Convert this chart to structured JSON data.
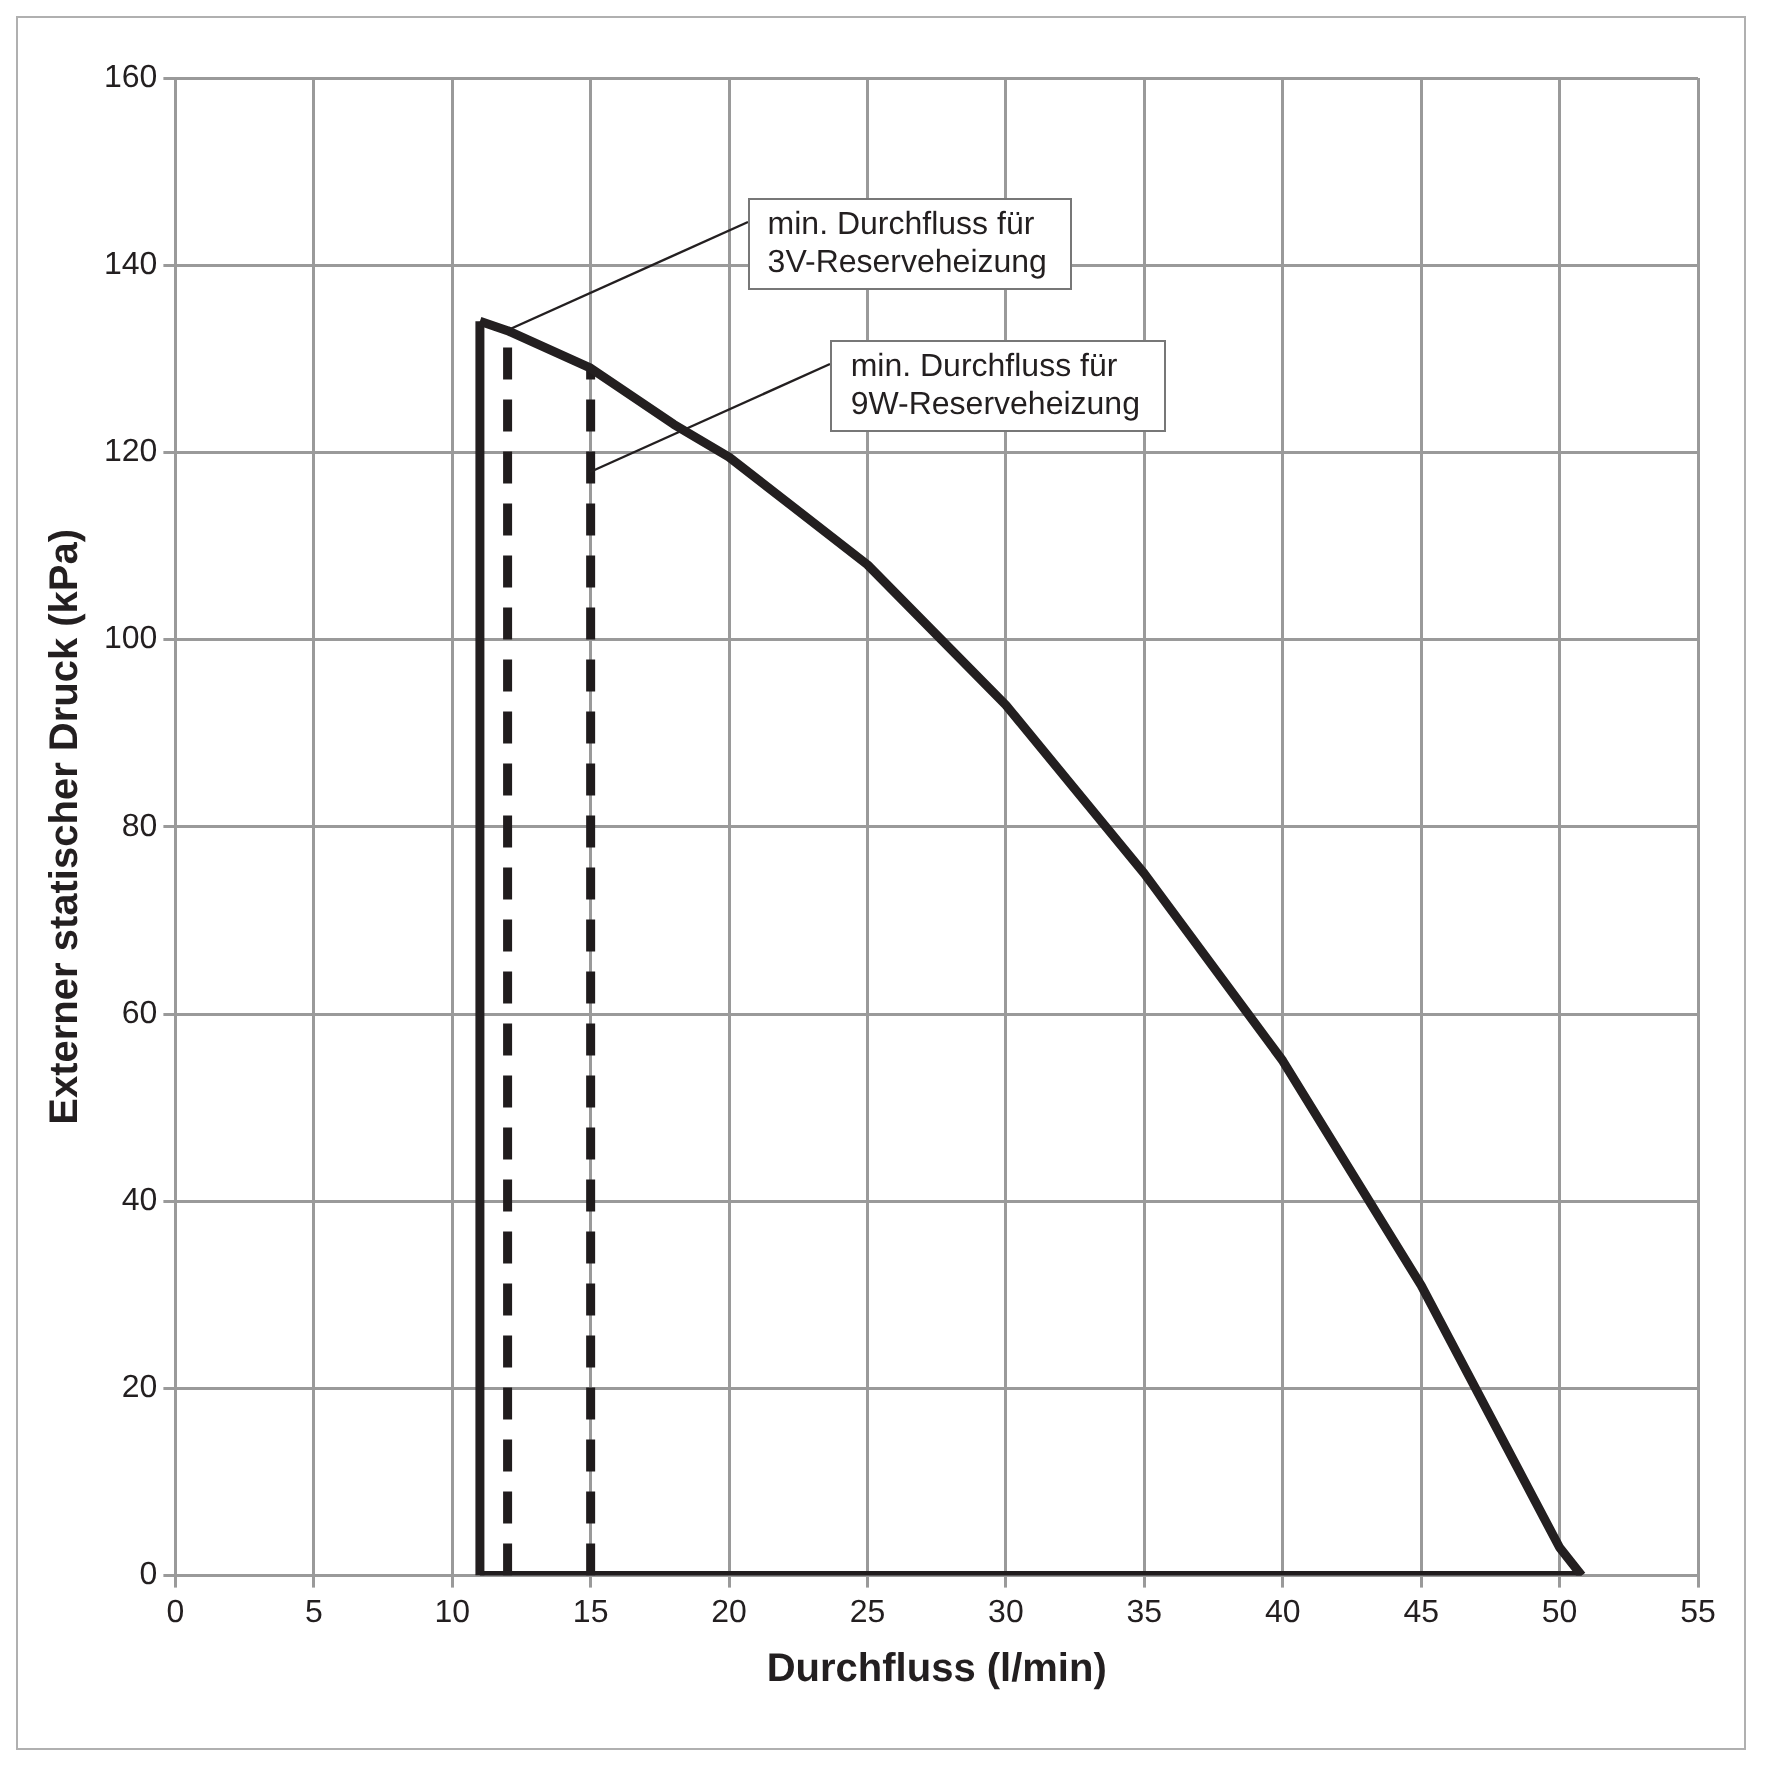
{
  "chart_data": {
    "type": "line",
    "xlabel": "Durchfluss (l/min)",
    "ylabel": "Externer statischer Druck (kPa)",
    "xlim": [
      0,
      55
    ],
    "xticks": [
      0,
      5,
      10,
      15,
      20,
      25,
      30,
      35,
      40,
      45,
      50,
      55
    ],
    "ylim": [
      0,
      160
    ],
    "yticks": [
      0,
      20,
      40,
      60,
      80,
      100,
      120,
      140,
      160
    ],
    "grid": true,
    "legend": false,
    "marker": "none",
    "series": [
      {
        "color": "#231f20",
        "line_style": "solid",
        "x": [
          11,
          12,
          15,
          18,
          20,
          25,
          30,
          35,
          40,
          45,
          50,
          50.8
        ],
        "values": [
          134,
          133,
          129,
          123,
          119.5,
          108,
          93,
          75,
          55,
          31,
          3,
          0
        ]
      },
      {
        "color": "#221e1f",
        "line_style": "solid",
        "x": [
          11,
          11
        ],
        "values": [
          0,
          134
        ]
      },
      {
        "color": "#211d1e",
        "line_style": "solid",
        "x": [
          11,
          50.8
        ],
        "values": [
          0,
          0
        ]
      },
      {
        "color": "#201c1d",
        "line_style": "dashed",
        "x": [
          12,
          12
        ],
        "values": [
          0,
          133
        ]
      },
      {
        "color": "#1f1b1c",
        "line_style": "dashed",
        "x": [
          15,
          15
        ],
        "values": [
          0,
          129
        ]
      }
    ],
    "annotations": [
      {
        "text": "min. Durchfluss für\n3V-Reserveheizung",
        "x": 12,
        "y": 133
      },
      {
        "text": "min. Durchfluss für\n9W-Reserveheizung",
        "x": 15,
        "y": 118
      }
    ]
  }
}
